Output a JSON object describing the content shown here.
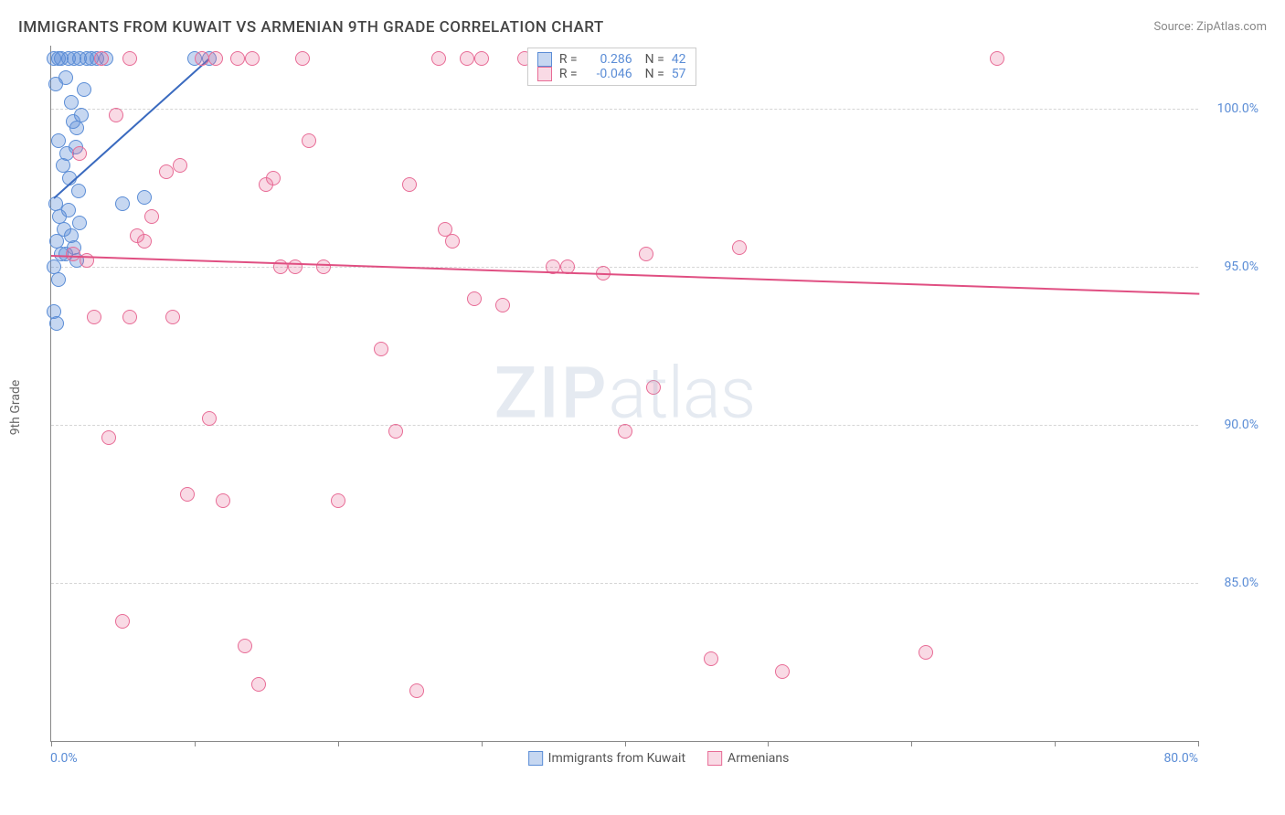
{
  "title": "IMMIGRANTS FROM KUWAIT VS ARMENIAN 9TH GRADE CORRELATION CHART",
  "source": "Source: ZipAtlas.com",
  "ylabel": "9th Grade",
  "watermark_bold": "ZIP",
  "watermark_light": "atlas",
  "chart": {
    "type": "scatter",
    "xlim": [
      0,
      80
    ],
    "ylim": [
      80,
      102
    ],
    "x_left_tick": "0.0%",
    "x_right_tick": "80.0%",
    "y_ticks": [
      {
        "v": 85,
        "label": "85.0%"
      },
      {
        "v": 90,
        "label": "90.0%"
      },
      {
        "v": 95,
        "label": "95.0%"
      },
      {
        "v": 100,
        "label": "100.0%"
      }
    ],
    "x_tick_marks": [
      0,
      10,
      20,
      30,
      40,
      50,
      60,
      70,
      80
    ],
    "grid_color": "#d5d5d5",
    "background_color": "#ffffff",
    "marker_radius": 8,
    "marker_stroke": 1.5,
    "series": [
      {
        "key": "kuwait",
        "label": "Immigrants from Kuwait",
        "R": "0.286",
        "N": "42",
        "fill": "rgba(91,141,214,0.35)",
        "stroke": "#5b8dd6",
        "line_color": "#3a6abf",
        "points": [
          [
            0.2,
            101.6
          ],
          [
            0.3,
            100.8
          ],
          [
            0.5,
            101.6
          ],
          [
            0.7,
            101.6
          ],
          [
            1.0,
            101.0
          ],
          [
            1.2,
            101.6
          ],
          [
            1.4,
            100.2
          ],
          [
            1.6,
            101.6
          ],
          [
            1.8,
            99.4
          ],
          [
            2.0,
            101.6
          ],
          [
            0.5,
            99.0
          ],
          [
            0.8,
            98.2
          ],
          [
            1.1,
            98.6
          ],
          [
            1.3,
            97.8
          ],
          [
            1.5,
            99.6
          ],
          [
            1.7,
            98.8
          ],
          [
            1.9,
            97.4
          ],
          [
            2.1,
            99.8
          ],
          [
            2.3,
            100.6
          ],
          [
            2.5,
            101.6
          ],
          [
            0.3,
            97.0
          ],
          [
            0.6,
            96.6
          ],
          [
            0.9,
            96.2
          ],
          [
            1.2,
            96.8
          ],
          [
            1.4,
            96.0
          ],
          [
            1.6,
            95.6
          ],
          [
            1.8,
            95.2
          ],
          [
            2.0,
            96.4
          ],
          [
            0.4,
            95.8
          ],
          [
            0.7,
            95.4
          ],
          [
            0.2,
            95.0
          ],
          [
            0.5,
            94.6
          ],
          [
            0.2,
            93.6
          ],
          [
            0.4,
            93.2
          ],
          [
            1.0,
            95.4
          ],
          [
            2.8,
            101.6
          ],
          [
            3.2,
            101.6
          ],
          [
            3.8,
            101.6
          ],
          [
            5.0,
            97.0
          ],
          [
            6.5,
            97.2
          ],
          [
            10.0,
            101.6
          ],
          [
            11.0,
            101.6
          ]
        ],
        "trend": {
          "x0": 0.2,
          "y0": 97.2,
          "x1": 11.0,
          "y1": 101.6
        }
      },
      {
        "key": "armenian",
        "label": "Armenians",
        "R": "-0.046",
        "N": "57",
        "fill": "rgba(232,108,150,0.25)",
        "stroke": "#e86c96",
        "line_color": "#e04f82",
        "points": [
          [
            1.5,
            95.4
          ],
          [
            2.5,
            95.2
          ],
          [
            3.5,
            101.6
          ],
          [
            4.5,
            99.8
          ],
          [
            5.5,
            93.4
          ],
          [
            6.5,
            95.8
          ],
          [
            7.0,
            96.6
          ],
          [
            8.0,
            98.0
          ],
          [
            8.5,
            93.4
          ],
          [
            9.0,
            98.2
          ],
          [
            9.5,
            87.8
          ],
          [
            10.5,
            101.6
          ],
          [
            11.0,
            90.2
          ],
          [
            11.5,
            101.6
          ],
          [
            12.0,
            87.6
          ],
          [
            13.0,
            101.6
          ],
          [
            13.5,
            83.0
          ],
          [
            14.0,
            101.6
          ],
          [
            14.5,
            81.8
          ],
          [
            15.0,
            97.6
          ],
          [
            15.5,
            97.8
          ],
          [
            16.0,
            95.0
          ],
          [
            17.0,
            95.0
          ],
          [
            17.5,
            101.6
          ],
          [
            18.0,
            99.0
          ],
          [
            19.0,
            95.0
          ],
          [
            20.0,
            87.6
          ],
          [
            23.0,
            92.4
          ],
          [
            24.0,
            89.8
          ],
          [
            25.0,
            97.6
          ],
          [
            25.5,
            81.6
          ],
          [
            27.0,
            101.6
          ],
          [
            27.5,
            96.2
          ],
          [
            28.0,
            95.8
          ],
          [
            29.0,
            101.6
          ],
          [
            29.5,
            94.0
          ],
          [
            30.0,
            101.6
          ],
          [
            31.5,
            93.8
          ],
          [
            33.0,
            101.6
          ],
          [
            35.0,
            95.0
          ],
          [
            36.0,
            95.0
          ],
          [
            38.0,
            101.6
          ],
          [
            38.5,
            94.8
          ],
          [
            40.0,
            89.8
          ],
          [
            41.5,
            95.4
          ],
          [
            42.0,
            91.2
          ],
          [
            46.0,
            82.6
          ],
          [
            51.0,
            82.2
          ],
          [
            61.0,
            82.8
          ],
          [
            66.0,
            101.6
          ],
          [
            2.0,
            98.6
          ],
          [
            3.0,
            93.4
          ],
          [
            4.0,
            89.6
          ],
          [
            6.0,
            96.0
          ],
          [
            48.0,
            95.6
          ],
          [
            5.0,
            83.8
          ],
          [
            5.5,
            101.6
          ]
        ],
        "trend": {
          "x0": 0,
          "y0": 95.4,
          "x1": 80,
          "y1": 94.2
        }
      }
    ]
  },
  "legend_labels": {
    "R_label": "R =",
    "N_label": "N ="
  }
}
